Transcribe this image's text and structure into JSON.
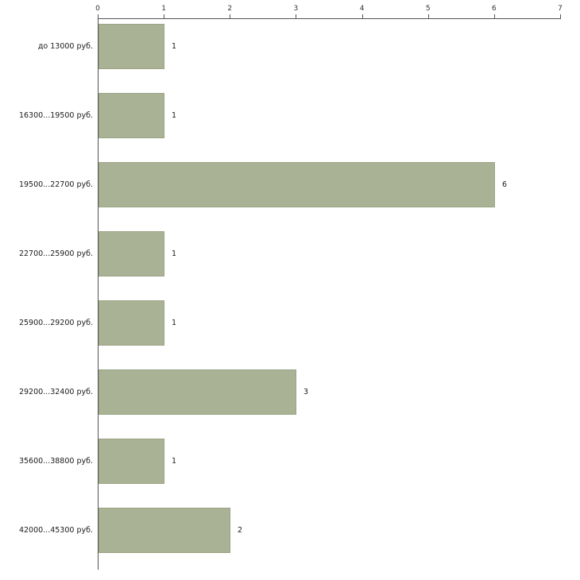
{
  "chart_data": {
    "type": "bar",
    "orientation": "horizontal",
    "title": "",
    "xlabel": "",
    "ylabel": "",
    "categories": [
      "до 13000 руб.",
      "16300...19500 руб.",
      "19500...22700 руб.",
      "22700...25900 руб.",
      "25900...29200 руб.",
      "29200...32400 руб.",
      "35600...38800 руб.",
      "42000...45300 руб."
    ],
    "values": [
      1,
      1,
      6,
      1,
      1,
      3,
      1,
      2
    ],
    "xlim": [
      0,
      7
    ],
    "x_ticks": [
      "0",
      "1",
      "2",
      "3",
      "4",
      "5",
      "6",
      "7"
    ],
    "bar_color": "#a9b294",
    "axis_color": "#555555",
    "grid": "off",
    "legend": "none"
  }
}
